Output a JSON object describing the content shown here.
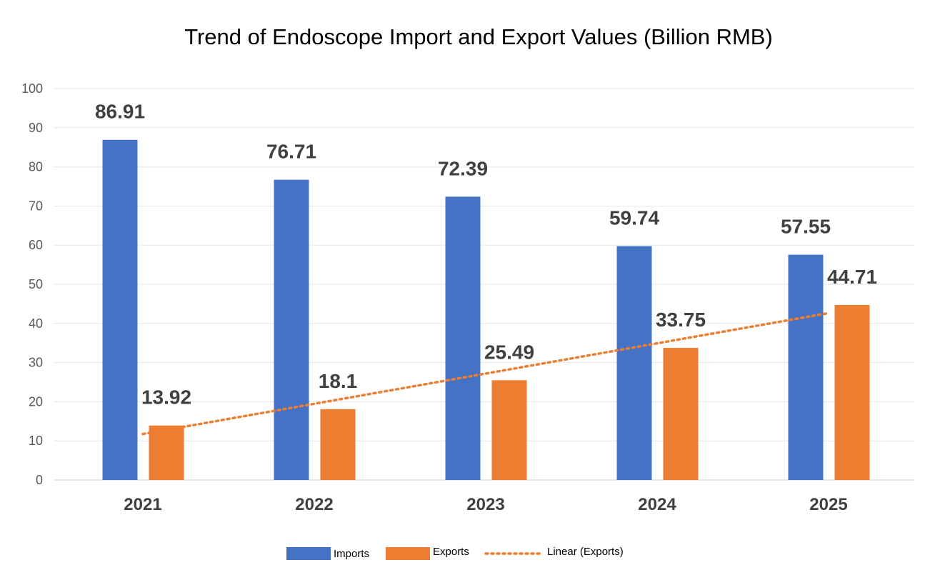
{
  "chart_data": {
    "type": "bar",
    "title": "Trend of Endoscope Import and Export Values (Billion RMB)",
    "xlabel": "",
    "ylabel": "",
    "categories": [
      "2021",
      "2022",
      "2023",
      "2024",
      "2025"
    ],
    "series": [
      {
        "name": "Imports",
        "color": "#4472C4",
        "values": [
          86.91,
          76.71,
          72.39,
          59.74,
          57.55
        ],
        "labels": [
          "86.91",
          "76.71",
          "72.39",
          "59.74",
          "57.55"
        ]
      },
      {
        "name": "Exports",
        "color": "#ED7D31",
        "values": [
          13.92,
          18.1,
          25.49,
          33.75,
          44.71
        ],
        "labels": [
          "13.92",
          "18.1",
          "25.49",
          "33.75",
          "44.71"
        ]
      }
    ],
    "trendline": {
      "name": "Linear (Exports)",
      "of": "Exports",
      "type": "linear",
      "color": "#ED7D31",
      "style": "dotted"
    },
    "ylim": [
      0,
      100
    ],
    "yticks": [
      "0",
      "10",
      "20",
      "30",
      "40",
      "50",
      "60",
      "70",
      "80",
      "90",
      "100"
    ],
    "grid": true,
    "legend_position": "bottom"
  }
}
